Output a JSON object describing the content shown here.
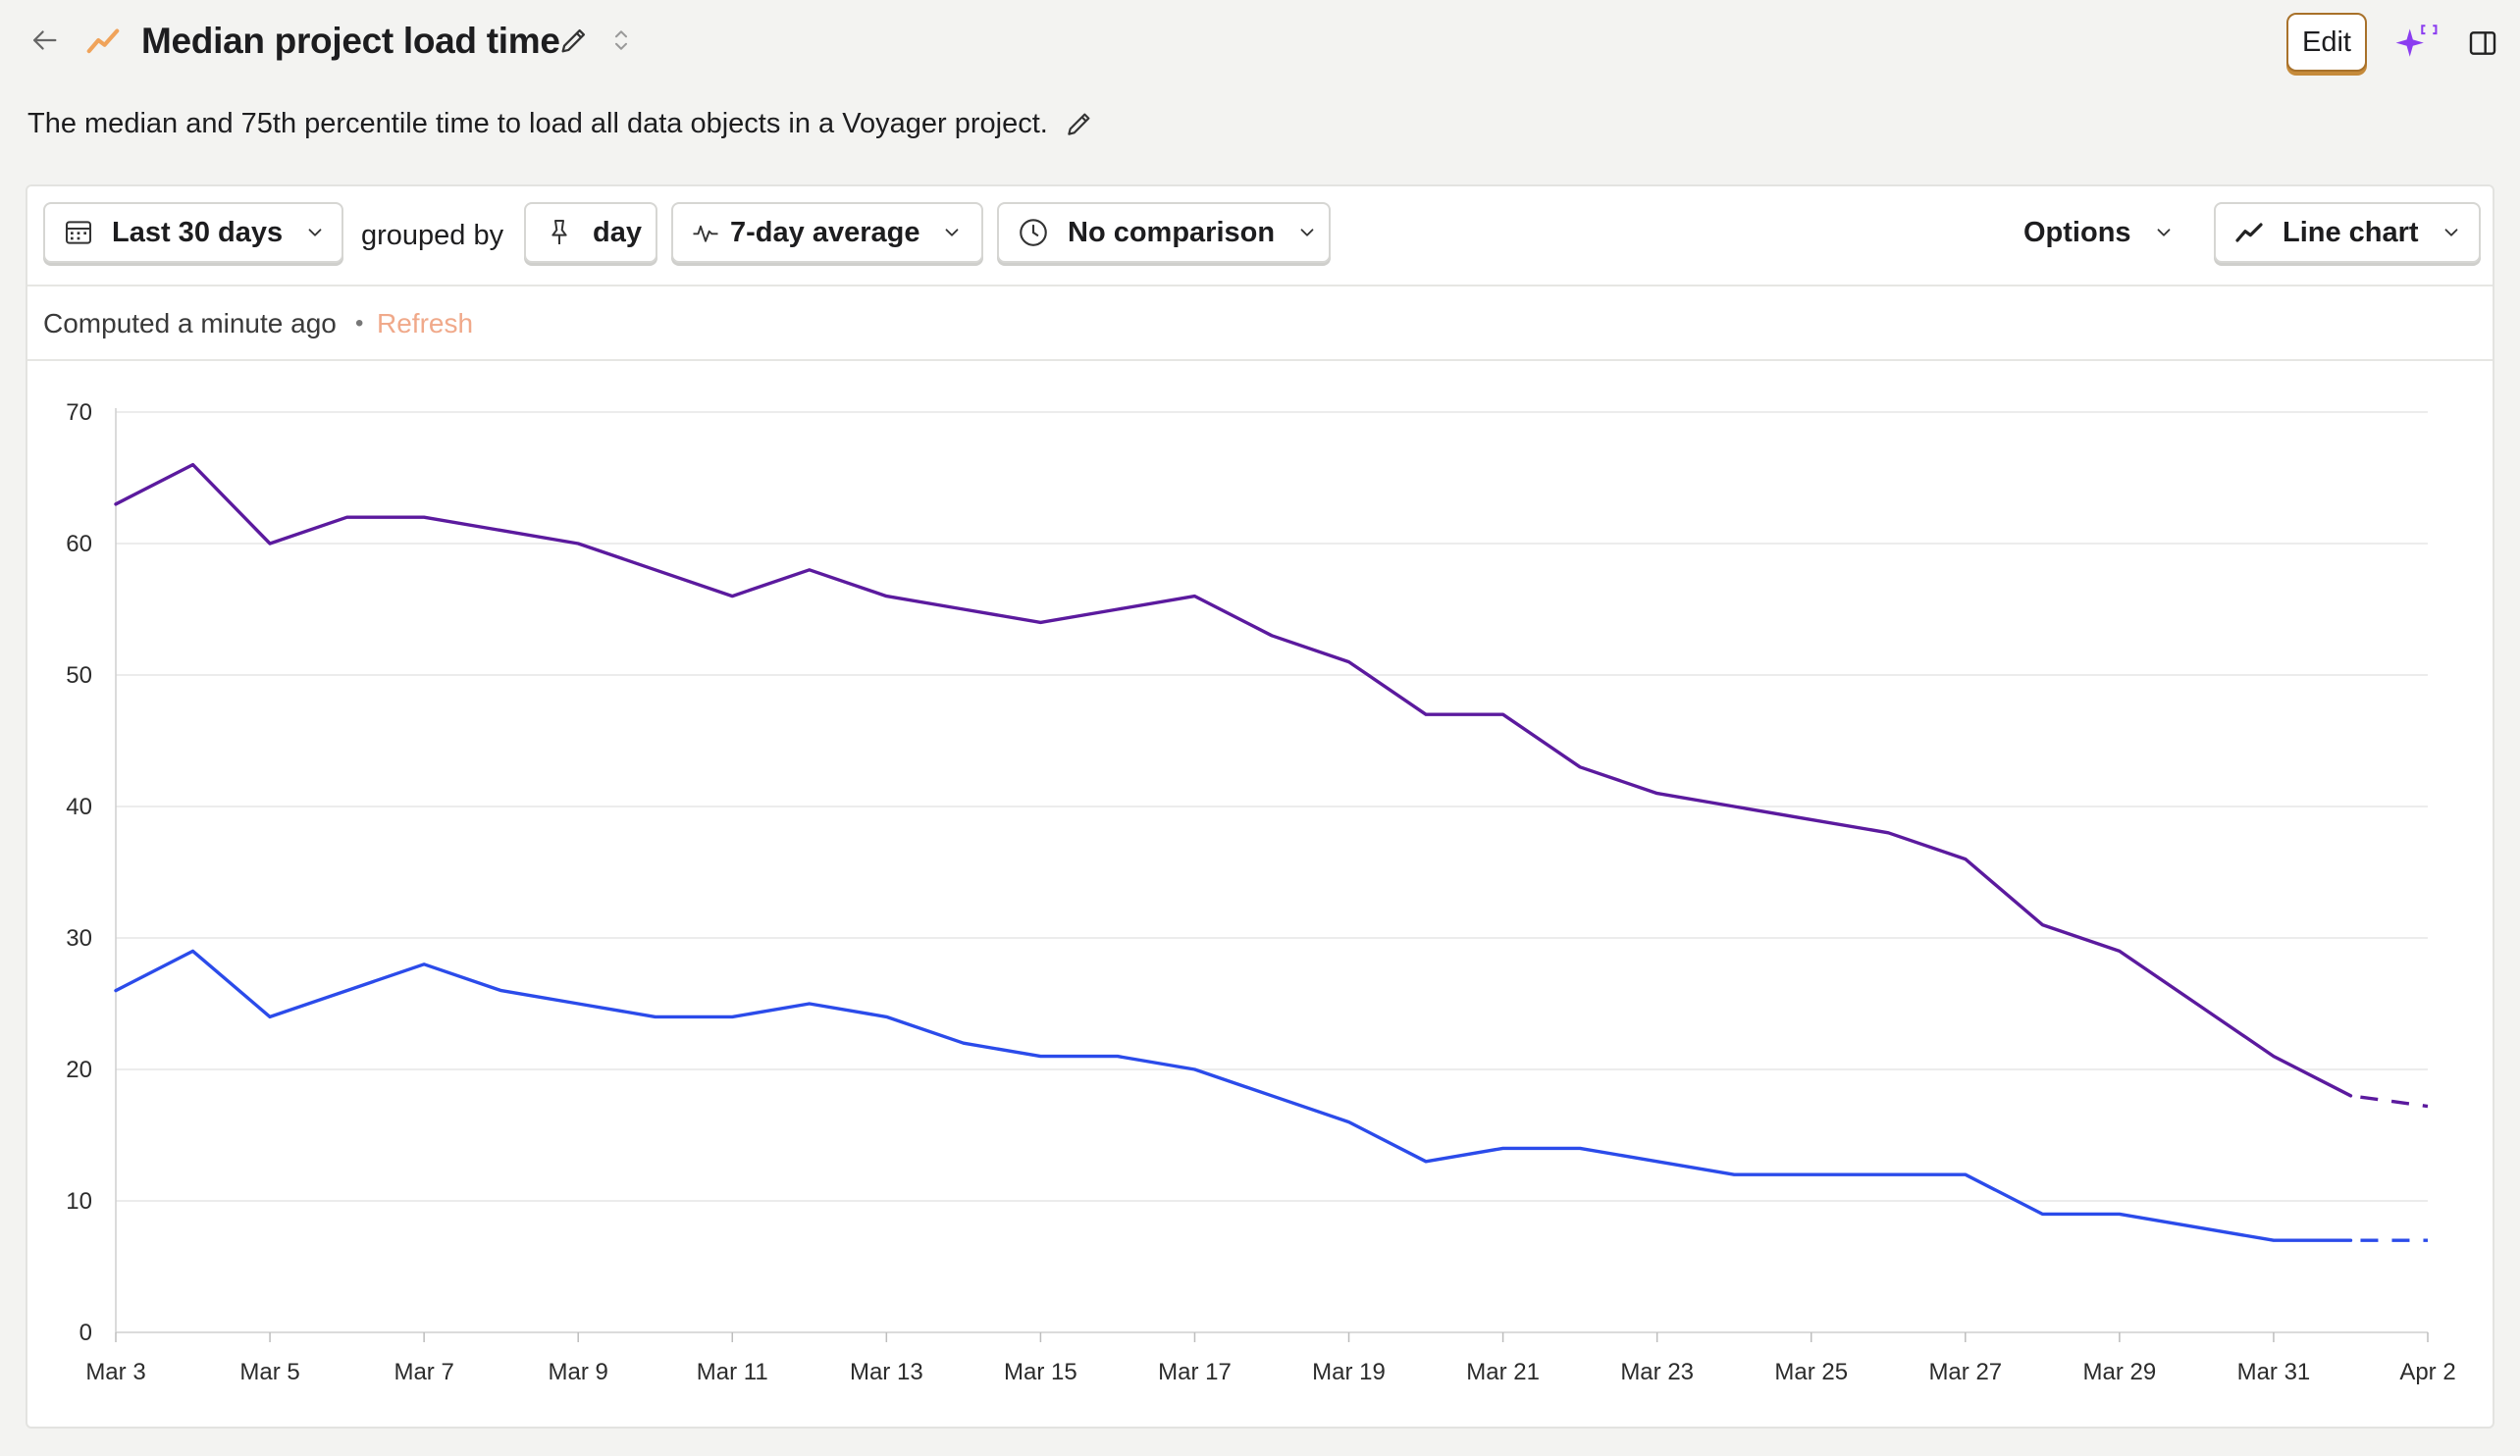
{
  "header": {
    "title": "Median project load time",
    "description": "The median and 75th percentile time to load all data objects in a Voyager project.",
    "edit_label": "Edit"
  },
  "controls": {
    "date_range": "Last 30 days",
    "grouped_by_label": "grouped by",
    "interval": "day",
    "smoothing": "7-day average",
    "comparison": "No comparison",
    "options_label": "Options",
    "chart_type": "Line chart"
  },
  "status": {
    "computed": "Computed a minute ago",
    "separator": "•",
    "refresh": "Refresh"
  },
  "colors": {
    "accent": "#f0a35a",
    "p75_series": "#5b1a9e",
    "median_series": "#2b4bea",
    "refresh": "#f0a98a"
  },
  "icons": {
    "back": "arrow-left-icon",
    "insight": "trend-line-icon",
    "title_edit": "pencil-icon",
    "collapse": "chevron-up-down-icon",
    "ai": "sparkle-icon",
    "panel": "side-panel-icon",
    "calendar": "calendar-icon",
    "pin": "pin-icon",
    "smoothing": "pulse-icon",
    "comparison": "clock-icon",
    "chart_type": "line-chart-icon"
  },
  "chart_data": {
    "type": "line",
    "x": [
      "Mar 3",
      "Mar 4",
      "Mar 5",
      "Mar 6",
      "Mar 7",
      "Mar 8",
      "Mar 9",
      "Mar 10",
      "Mar 11",
      "Mar 12",
      "Mar 13",
      "Mar 14",
      "Mar 15",
      "Mar 16",
      "Mar 17",
      "Mar 18",
      "Mar 19",
      "Mar 20",
      "Mar 21",
      "Mar 22",
      "Mar 23",
      "Mar 24",
      "Mar 25",
      "Mar 26",
      "Mar 27",
      "Mar 28",
      "Mar 29",
      "Mar 30",
      "Mar 31",
      "Apr 1",
      "Apr 2"
    ],
    "x_tick_labels": [
      "Mar 3",
      "Mar 5",
      "Mar 7",
      "Mar 9",
      "Mar 11",
      "Mar 13",
      "Mar 15",
      "Mar 17",
      "Mar 19",
      "Mar 21",
      "Mar 23",
      "Mar 25",
      "Mar 27",
      "Mar 29",
      "Mar 31",
      "Apr 2"
    ],
    "y_ticks": [
      0,
      10,
      20,
      30,
      40,
      50,
      60,
      70
    ],
    "ylim": [
      0,
      70
    ],
    "grid": true,
    "incomplete_last_point": true,
    "series": [
      {
        "color": "#5b1a9e",
        "values": [
          63,
          66,
          60,
          62,
          62,
          61,
          60,
          58,
          56,
          58,
          56,
          55,
          54,
          55,
          56,
          53,
          51,
          47,
          47,
          43,
          41,
          40,
          39,
          38,
          36,
          31,
          29,
          25,
          21,
          18,
          17.2
        ]
      },
      {
        "color": "#2b4bea",
        "values": [
          26,
          29,
          24,
          26,
          28,
          26,
          25,
          24,
          24,
          25,
          24,
          22,
          21,
          21,
          20,
          18,
          16,
          13,
          14,
          14,
          13,
          12,
          12,
          12,
          12,
          9,
          9,
          8,
          7,
          7,
          7
        ]
      }
    ]
  }
}
